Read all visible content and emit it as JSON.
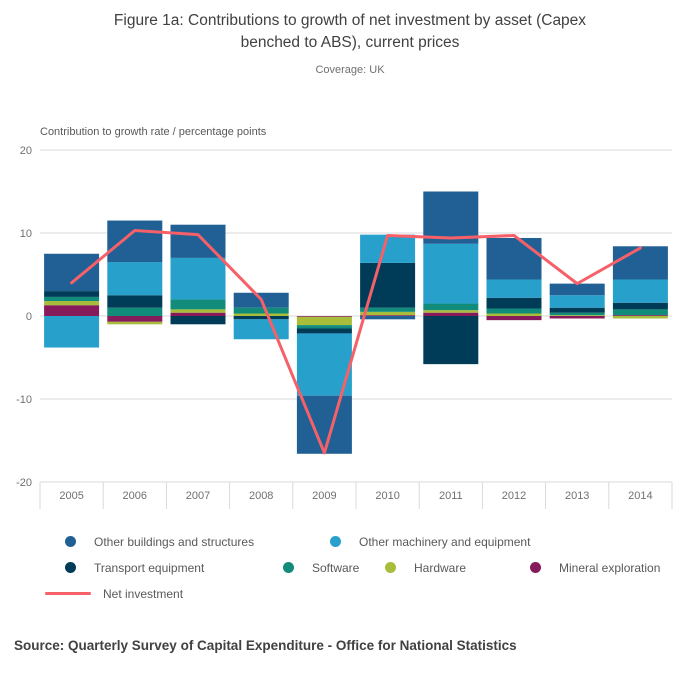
{
  "header": {
    "title": "Figure 1a: Contributions to growth of net investment by asset (Capex benched to ABS), current prices",
    "subtitle": "Coverage: UK"
  },
  "chart_data": {
    "type": "bar",
    "stacked": true,
    "axis_title": "Contribution to growth rate / percentage points",
    "categories": [
      "2005",
      "2006",
      "2007",
      "2008",
      "2009",
      "2010",
      "2011",
      "2012",
      "2013",
      "2014"
    ],
    "y_ticks": [
      20,
      10,
      0,
      -10,
      -20
    ],
    "ylim": [
      -20,
      20
    ],
    "grid_on": true,
    "grid_color": "#d9d9d9",
    "tick_label_color": "#707070",
    "legend_position": "bottom",
    "series": [
      {
        "name": "Other buildings and structures",
        "color": "#206095",
        "values": [
          4.5,
          5.0,
          4.0,
          1.8,
          -7.0,
          -0.4,
          6.3,
          5.0,
          1.4,
          4.0
        ]
      },
      {
        "name": "Other machinery and equipment",
        "color": "#27A0CC",
        "values": [
          -3.8,
          4.0,
          5.0,
          -2.4,
          -7.5,
          3.4,
          7.2,
          2.2,
          1.5,
          2.8
        ]
      },
      {
        "name": "Transport equipment",
        "color": "#003C57",
        "values": [
          0.7,
          1.5,
          -1.0,
          -0.4,
          -0.6,
          5.4,
          -5.8,
          1.3,
          0.6,
          0.8
        ]
      },
      {
        "name": "Software",
        "color": "#118C7B",
        "values": [
          0.5,
          1.0,
          1.2,
          0.7,
          -0.4,
          0.5,
          0.8,
          0.6,
          0.3,
          0.7
        ]
      },
      {
        "name": "Hardware",
        "color": "#A8BD3A",
        "values": [
          0.5,
          -0.3,
          0.4,
          0.3,
          -1.0,
          0.4,
          0.3,
          0.3,
          0.1,
          -0.3
        ]
      },
      {
        "name": "Mineral exploration",
        "color": "#871A5B",
        "values": [
          1.3,
          -0.7,
          0.4,
          0.0,
          -0.1,
          0.1,
          0.4,
          -0.5,
          -0.3,
          0.1
        ]
      }
    ],
    "line": {
      "name": "Net investment",
      "color": "#F66068",
      "values": [
        4.0,
        10.3,
        9.8,
        2.0,
        -16.5,
        9.7,
        9.4,
        9.7,
        3.9,
        8.2
      ]
    }
  },
  "footer": {
    "source": "Source: Quarterly Survey of Capital Expenditure - Office for National Statistics"
  }
}
